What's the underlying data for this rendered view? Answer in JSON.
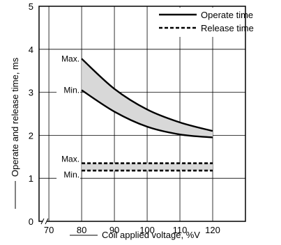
{
  "chart_data": {
    "type": "area",
    "title": "",
    "xlabel": "Coil applied voltage, %V",
    "ylabel": "Operate and release time, ms",
    "xlim": [
      67,
      130
    ],
    "ylim": [
      0,
      5
    ],
    "x_ticks": [
      70,
      80,
      90,
      100,
      110,
      120
    ],
    "y_ticks": [
      0,
      1,
      2,
      3,
      4,
      5
    ],
    "axis_break": "x-axis broken between 0 and 70",
    "grid": true,
    "legend_position": "top-right",
    "legend": [
      {
        "label": "Operate time",
        "style": "solid"
      },
      {
        "label": "Release time",
        "style": "dashed"
      }
    ],
    "series": [
      {
        "group": "Operate time",
        "bound": "Max.",
        "style": "solid",
        "x": [
          80,
          90,
          100,
          110,
          120
        ],
        "y": [
          3.78,
          3.08,
          2.6,
          2.3,
          2.1
        ]
      },
      {
        "group": "Operate time",
        "bound": "Min.",
        "style": "solid",
        "x": [
          80,
          90,
          100,
          110,
          120
        ],
        "y": [
          3.05,
          2.55,
          2.2,
          2.02,
          1.95
        ]
      },
      {
        "group": "Release time",
        "bound": "Max.",
        "style": "dashed",
        "x": [
          80,
          120
        ],
        "y": [
          1.35,
          1.35
        ]
      },
      {
        "group": "Release time",
        "bound": "Min.",
        "style": "dashed",
        "x": [
          80,
          120
        ],
        "y": [
          1.18,
          1.18
        ]
      }
    ],
    "annotations": [
      {
        "text": "Max.",
        "x": 80,
        "y": 3.78
      },
      {
        "text": "Min.",
        "x": 80,
        "y": 3.05
      },
      {
        "text": "Max.",
        "x": 80,
        "y": 1.35
      },
      {
        "text": "Min.",
        "x": 80,
        "y": 1.18
      }
    ],
    "colors": {
      "line": "#000000",
      "band_fill": "#d8d8d8",
      "grid": "#000000"
    }
  }
}
